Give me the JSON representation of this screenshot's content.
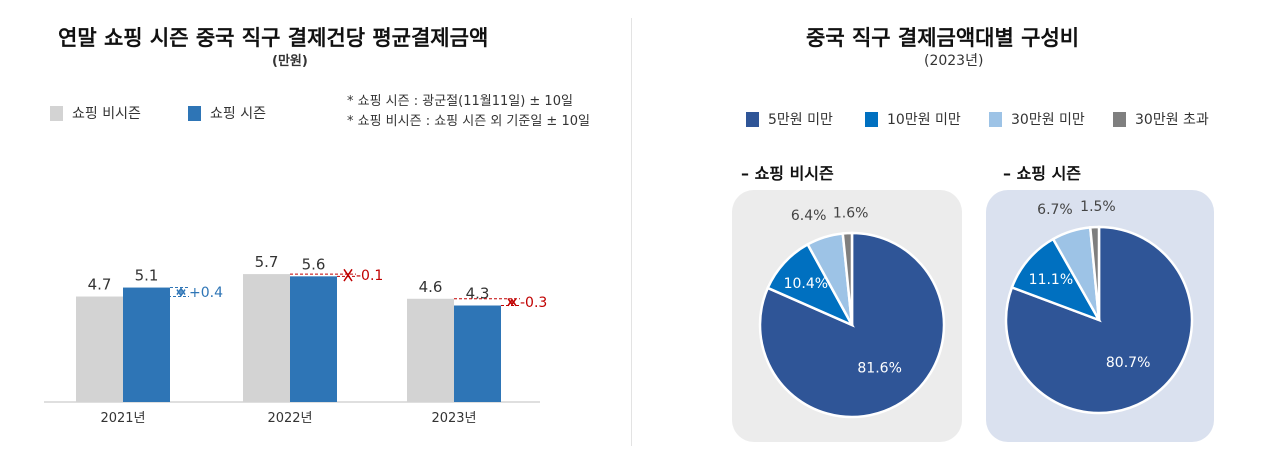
{
  "left": {
    "title": "연말 쇼핑 시즌 중국 직구 결제건당 평균결제금액",
    "unit": "(만원)",
    "legend": [
      {
        "label": "쇼핑 비시즌",
        "color": "#d3d3d3"
      },
      {
        "label": "쇼핑 시즌",
        "color": "#2e75b6"
      }
    ],
    "notes": [
      "* 쇼핑 시즌 : 광군절(11월11일) ± 10일",
      "* 쇼핑 비시즌 : 쇼핑 시즌 외 기준일 ± 10일"
    ]
  },
  "right": {
    "title": "중국 직구 결제금액대별 구성비",
    "subtitle": "(2023년)",
    "legend": [
      {
        "label": "5만원 미만",
        "color": "#2f5597"
      },
      {
        "label": "10만원 미만",
        "color": "#0070c0"
      },
      {
        "label": "30만원 미만",
        "color": "#9dc3e6"
      },
      {
        "label": "30만원 초과",
        "color": "#7f7f7f"
      }
    ],
    "panels": [
      {
        "title": "– 쇼핑 비시즌",
        "bg": "#ececec"
      },
      {
        "title": "– 쇼핑 시즌",
        "bg": "#dae1ef"
      }
    ]
  },
  "chart_data": [
    {
      "type": "bar",
      "title": "연말 쇼핑 시즌 중국 직구 결제건당 평균결제금액",
      "ylabel": "(만원)",
      "categories": [
        "2021년",
        "2022년",
        "2023년"
      ],
      "series": [
        {
          "name": "쇼핑 비시즌",
          "values": [
            4.7,
            5.7,
            4.6
          ],
          "color": "#d3d3d3",
          "labels": [
            "4.7",
            "5.7",
            "4.6"
          ]
        },
        {
          "name": "쇼핑 시즌",
          "values": [
            5.1,
            5.6,
            4.3
          ],
          "color": "#2e75b6",
          "labels": [
            "5.1",
            "5.6",
            "4.3"
          ]
        }
      ],
      "differences": [
        {
          "label": "+0.4",
          "color": "#2e75b6"
        },
        {
          "label": "-0.1",
          "color": "#c00000"
        },
        {
          "label": "-0.3",
          "color": "#c00000"
        }
      ],
      "ylim": [
        0,
        6.5
      ],
      "legend": "top-left",
      "grid": false
    },
    {
      "type": "pie",
      "title": "– 쇼핑 비시즌",
      "categories": [
        "5만원 미만",
        "10만원 미만",
        "30만원 미만",
        "30만원 초과"
      ],
      "values": [
        81.6,
        10.4,
        6.4,
        1.6
      ],
      "labels": [
        "81.6%",
        "10.4%",
        "6.4%",
        "1.6%"
      ]
    },
    {
      "type": "pie",
      "title": "– 쇼핑 시즌",
      "categories": [
        "5만원 미만",
        "10만원 미만",
        "30만원 미만",
        "30만원 초과"
      ],
      "values": [
        80.7,
        11.1,
        6.7,
        1.5
      ],
      "labels": [
        "80.7%",
        "11.1%",
        "6.7%",
        "1.5%"
      ]
    }
  ]
}
